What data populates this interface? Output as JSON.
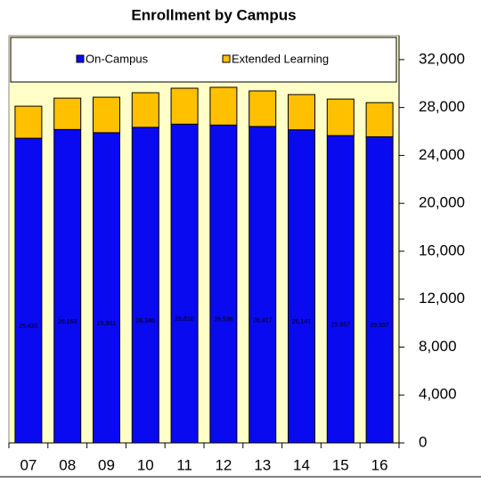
{
  "chart_data": {
    "type": "stacked-bar",
    "title": "Enrollment by Campus",
    "categories": [
      "07",
      "08",
      "09",
      "10",
      "11",
      "12",
      "13",
      "14",
      "15",
      "16"
    ],
    "series": [
      {
        "name": "On-Campus",
        "color": "#0a0af0",
        "values": [
          25436,
          26163,
          25901,
          26346,
          26610,
          26536,
          26417,
          26141,
          25657,
          25557
        ],
        "value_labels": [
          "25,436",
          "26,163",
          "25,901",
          "26,346",
          "26,610",
          "26,536",
          "26,417",
          "26,141",
          "25,657",
          "25,557"
        ]
      },
      {
        "name": "Extended Learning",
        "color": "#ffc000",
        "values": [
          2676,
          2620,
          2960,
          2890,
          3000,
          3150,
          2970,
          2940,
          3050,
          2850
        ]
      }
    ],
    "ylim": [
      0,
      34000
    ],
    "yticks": [
      0,
      {
        "value": 4000,
        "label": "4,000"
      },
      {
        "value": 8000,
        "label": "8,000"
      },
      {
        "value": 12000,
        "label": "12,000"
      },
      {
        "value": 16000,
        "label": "16,000"
      },
      {
        "value": 20000,
        "label": "20,000"
      },
      {
        "value": 24000,
        "label": "24,000"
      },
      {
        "value": 28000,
        "label": "28,000"
      },
      {
        "value": 32000,
        "label": "32,000"
      }
    ],
    "legend": "top",
    "y_axis_side": "right",
    "plot_background": "#ffffc8"
  }
}
